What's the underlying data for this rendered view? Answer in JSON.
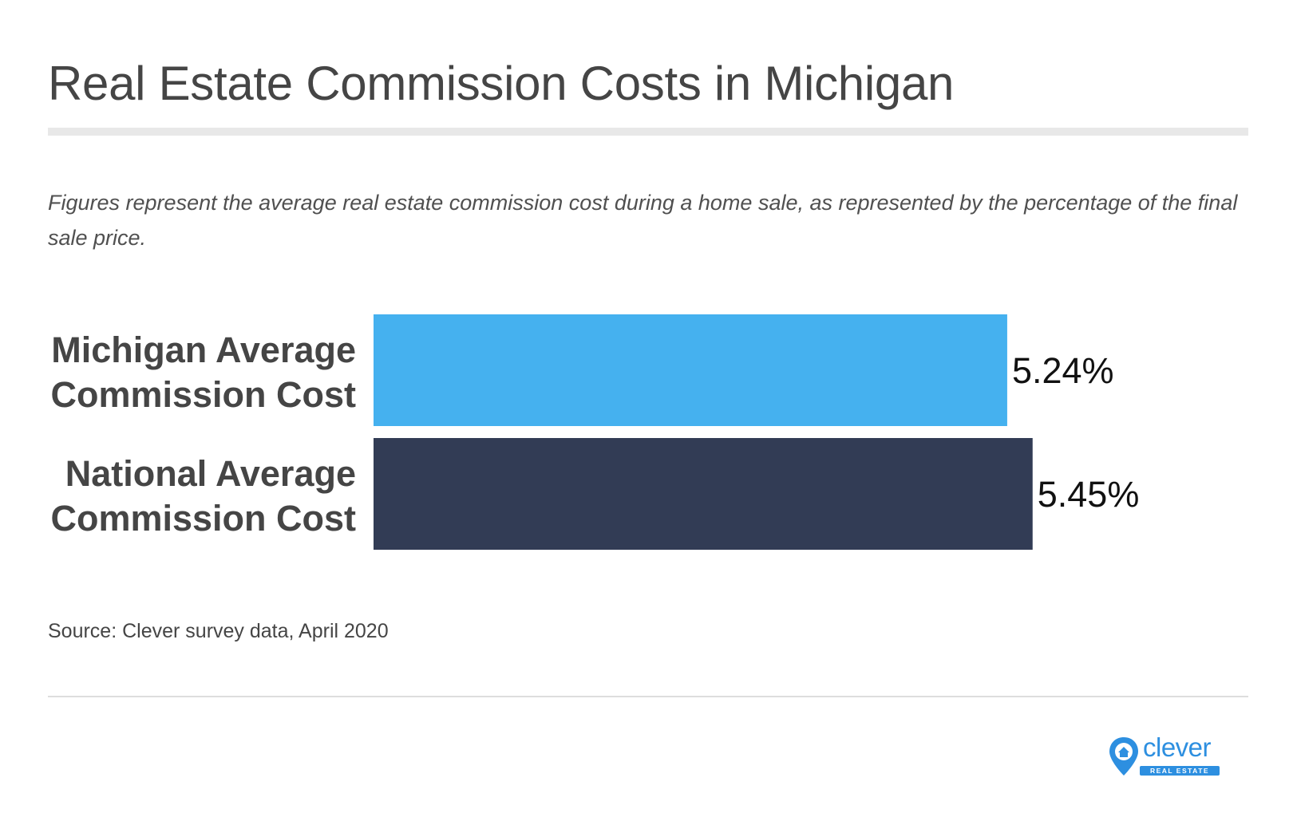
{
  "title": "Real Estate Commission Costs in Michigan",
  "subtitle": "Figures represent the average real estate commission cost during a home sale, as represented by the percentage of the final sale price.",
  "source": "Source: Clever survey data, April 2020",
  "logo": {
    "name": "clever",
    "tagline": "REAL ESTATE",
    "color": "#2d8fe0"
  },
  "chart_data": {
    "type": "bar",
    "orientation": "horizontal",
    "title": "Real Estate Commission Costs in Michigan",
    "xlabel": "",
    "ylabel": "",
    "grid": false,
    "categories": [
      [
        "Michigan Average",
        "Commission Cost"
      ],
      [
        "National Average",
        "Commission Cost"
      ]
    ],
    "values": [
      5.24,
      5.45
    ],
    "value_labels": [
      "5.24%",
      "5.45%"
    ],
    "colors": [
      "#45b1ef",
      "#323c55"
    ],
    "xlim": [
      0,
      6.6
    ]
  }
}
